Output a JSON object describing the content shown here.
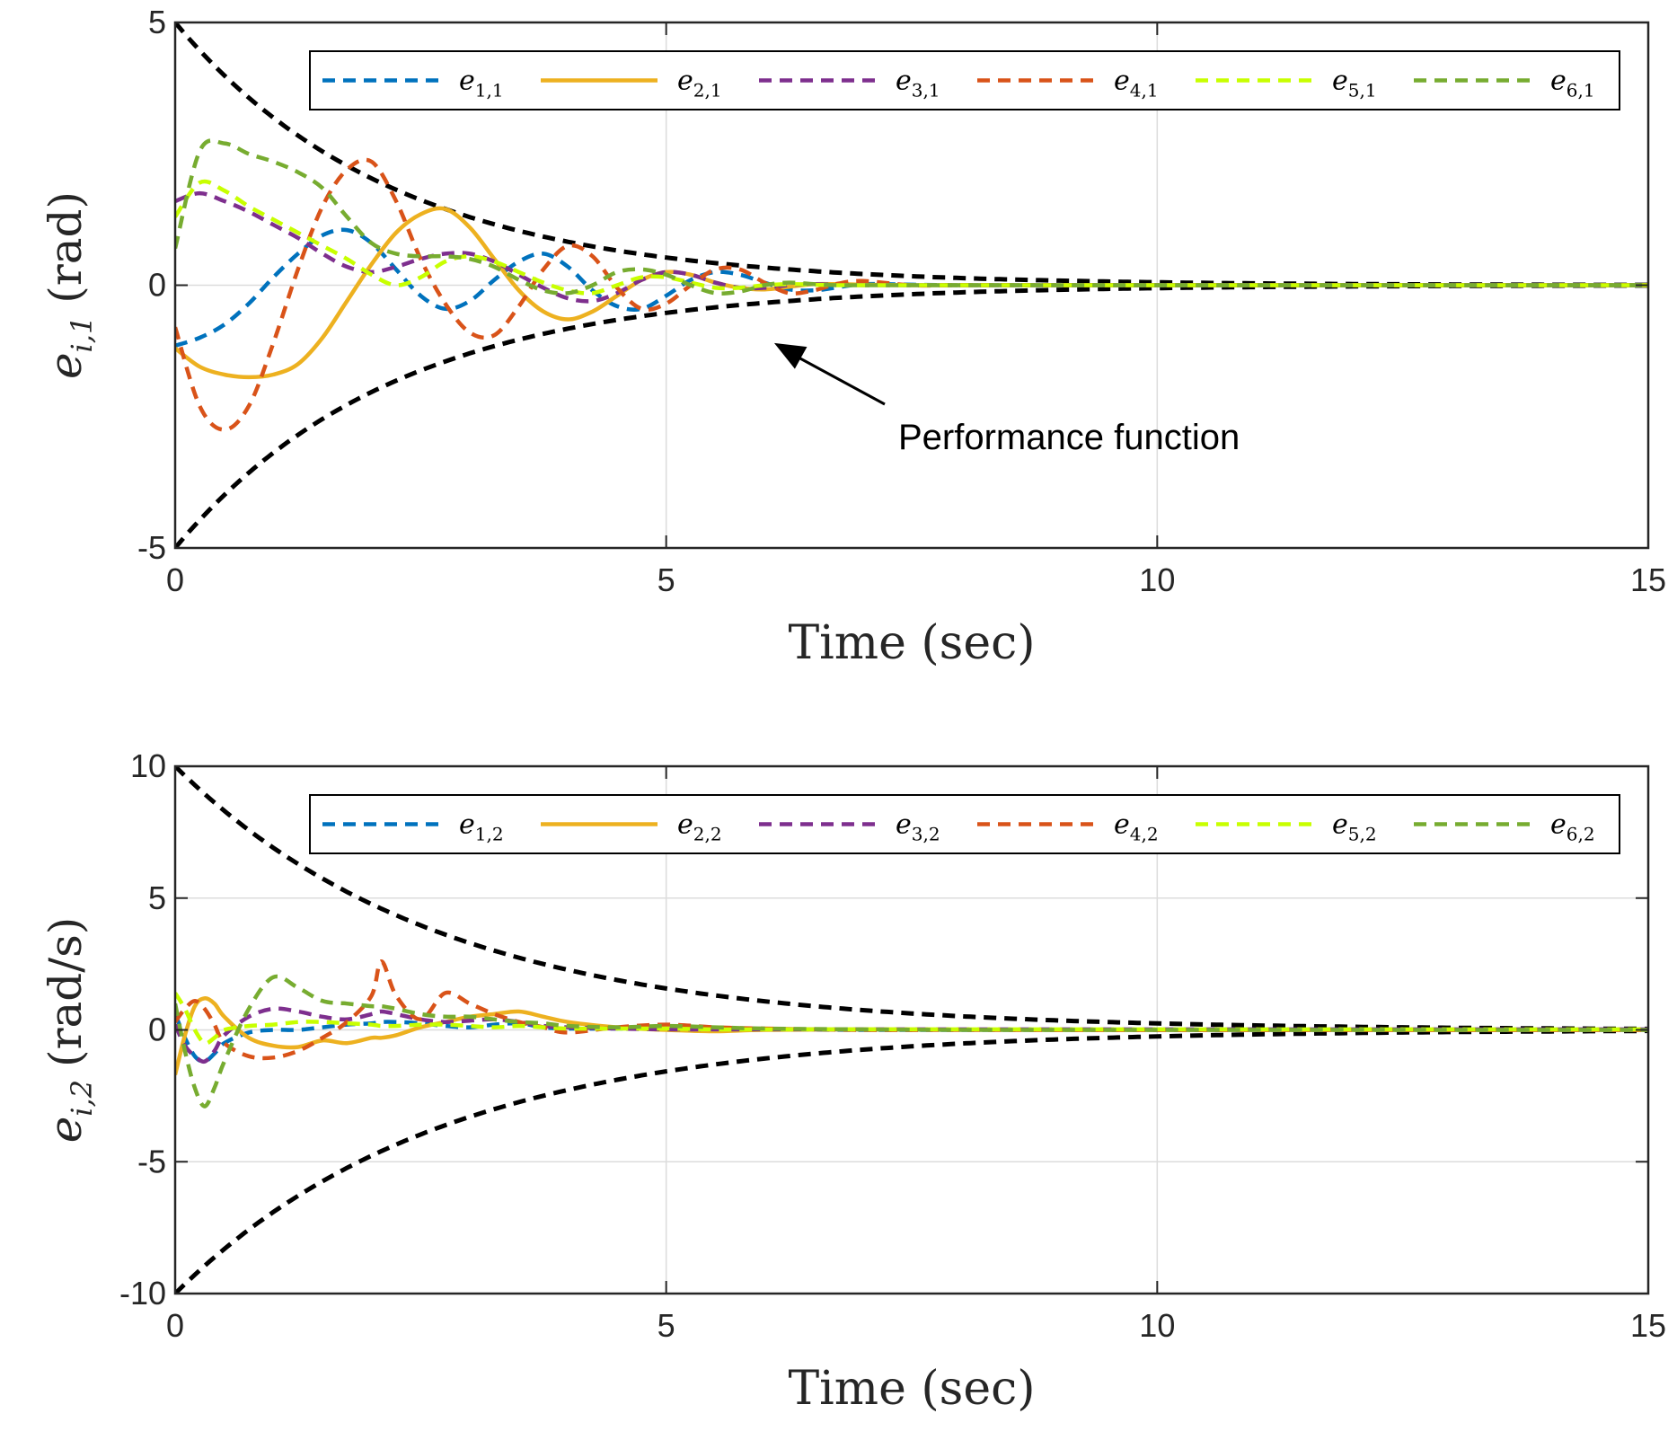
{
  "chart_data": [
    {
      "type": "line",
      "xlabel": "Time (sec)",
      "ylabel": {
        "var": "e",
        "sub": "i,1",
        "unit": "(rad)"
      },
      "xlim": [
        0,
        15
      ],
      "ylim": [
        -5,
        5
      ],
      "xticks": [
        0,
        5,
        10,
        15
      ],
      "yticks": [
        -5,
        0,
        5
      ],
      "x_tick_labels": [
        "0",
        "5",
        "10",
        "15"
      ],
      "y_tick_labels": [
        "-5",
        "0",
        "5"
      ],
      "grid": true,
      "legend_position": "top",
      "annotation": {
        "text": "Performance function",
        "arrow_to": [
          6.1,
          -1.1
        ]
      },
      "performance_function": {
        "name": "Performance function",
        "upper_start": 5,
        "lower_start": -5,
        "decay_rate": 0.45,
        "color": "#000000",
        "style": "dashed"
      },
      "x": [
        0,
        0.25,
        0.5,
        0.75,
        1,
        1.25,
        1.5,
        1.75,
        2,
        2.25,
        2.5,
        2.75,
        3,
        3.25,
        3.5,
        3.75,
        4,
        4.25,
        4.5,
        4.75,
        5,
        5.25,
        5.5,
        5.75,
        6,
        6.25,
        6.5,
        6.75,
        7,
        7.5,
        8,
        9,
        10,
        11,
        12,
        13,
        14,
        15
      ],
      "series": [
        {
          "name": "e",
          "sub": "1,1",
          "color": "#0072BD",
          "style": "dashed",
          "values": [
            -1.15,
            -1.0,
            -0.75,
            -0.35,
            0.15,
            0.6,
            0.95,
            1.05,
            0.8,
            0.3,
            -0.2,
            -0.45,
            -0.3,
            0.1,
            0.45,
            0.6,
            0.35,
            -0.1,
            -0.4,
            -0.45,
            -0.2,
            0.1,
            0.25,
            0.2,
            0.05,
            -0.08,
            -0.1,
            -0.04,
            0.02,
            0.01,
            0,
            0,
            0,
            0,
            0,
            0,
            0,
            0
          ]
        },
        {
          "name": "e",
          "sub": "2,1",
          "color": "#EDB120",
          "style": "solid",
          "values": [
            -1.2,
            -1.55,
            -1.7,
            -1.75,
            -1.7,
            -1.5,
            -1.0,
            -0.3,
            0.4,
            1.0,
            1.35,
            1.45,
            1.1,
            0.5,
            -0.1,
            -0.5,
            -0.65,
            -0.5,
            -0.2,
            0.1,
            0.25,
            0.2,
            0.05,
            -0.05,
            -0.08,
            -0.03,
            0.02,
            0.02,
            0.01,
            0,
            0,
            0,
            0,
            0,
            0,
            0,
            0,
            0
          ]
        },
        {
          "name": "e",
          "sub": "3,1",
          "color": "#7E2F8E",
          "style": "dashed",
          "values": [
            1.6,
            1.75,
            1.6,
            1.4,
            1.15,
            0.9,
            0.6,
            0.35,
            0.25,
            0.35,
            0.5,
            0.6,
            0.6,
            0.45,
            0.2,
            -0.05,
            -0.25,
            -0.3,
            -0.15,
            0.1,
            0.25,
            0.2,
            0.05,
            -0.05,
            -0.05,
            0,
            0.02,
            0.01,
            0,
            0,
            0,
            0,
            0,
            0,
            0,
            0,
            0,
            0
          ]
        },
        {
          "name": "e",
          "sub": "4,1",
          "color": "#D95319",
          "style": "dashed",
          "values": [
            -0.8,
            -2.3,
            -2.75,
            -2.3,
            -1.1,
            0.3,
            1.5,
            2.2,
            2.35,
            1.6,
            0.5,
            -0.35,
            -0.9,
            -0.95,
            -0.4,
            0.3,
            0.75,
            0.55,
            -0.05,
            -0.45,
            -0.35,
            0.0,
            0.3,
            0.3,
            0.05,
            -0.15,
            -0.1,
            0.03,
            0.08,
            0.0,
            0,
            0,
            0,
            0,
            0,
            0,
            0,
            0
          ]
        },
        {
          "name": "e",
          "sub": "5,1",
          "color": "#C8FF00",
          "style": "dashed",
          "values": [
            1.3,
            1.95,
            1.8,
            1.5,
            1.25,
            1.0,
            0.75,
            0.5,
            0.2,
            0.0,
            0.15,
            0.45,
            0.55,
            0.45,
            0.25,
            0.05,
            -0.1,
            -0.15,
            0.0,
            0.15,
            0.15,
            0.05,
            -0.05,
            -0.05,
            0.0,
            0.02,
            0.01,
            0,
            0,
            0,
            0,
            0,
            0,
            0,
            0,
            0,
            0,
            0
          ]
        },
        {
          "name": "e",
          "sub": "6,1",
          "color": "#77AC30",
          "style": "dashed",
          "values": [
            0.7,
            2.55,
            2.7,
            2.5,
            2.35,
            2.15,
            1.85,
            1.3,
            0.8,
            0.6,
            0.55,
            0.55,
            0.5,
            0.35,
            0.1,
            -0.1,
            -0.15,
            0.0,
            0.25,
            0.3,
            0.2,
            0.0,
            -0.15,
            -0.12,
            0.0,
            0.05,
            0.02,
            0,
            0,
            0,
            0,
            0,
            0,
            0,
            0,
            0,
            0,
            0
          ]
        }
      ]
    },
    {
      "type": "line",
      "xlabel": "Time (sec)",
      "ylabel": {
        "var": "e",
        "sub": "i,2",
        "unit": "(rad/s)"
      },
      "xlim": [
        0,
        15
      ],
      "ylim": [
        -10,
        10
      ],
      "xticks": [
        0,
        5,
        10,
        15
      ],
      "yticks": [
        -10,
        -5,
        0,
        5,
        10
      ],
      "x_tick_labels": [
        "0",
        "5",
        "10",
        "15"
      ],
      "y_tick_labels": [
        "-10",
        "-5",
        "0",
        "5",
        "10"
      ],
      "grid": true,
      "legend_position": "top",
      "performance_function": {
        "name": "Performance function",
        "upper_start": 10,
        "lower_start": -10,
        "decay_rate": 0.37,
        "color": "#000000",
        "style": "dashed"
      },
      "x": [
        0,
        0.1,
        0.2,
        0.3,
        0.4,
        0.5,
        0.75,
        1,
        1.25,
        1.5,
        1.75,
        2,
        2.1,
        2.25,
        2.5,
        2.75,
        3,
        3.25,
        3.5,
        3.75,
        4,
        4.5,
        5,
        5.5,
        6,
        7,
        8,
        9,
        10,
        12,
        15
      ],
      "series": [
        {
          "name": "e",
          "sub": "1,2",
          "color": "#0072BD",
          "style": "dashed",
          "values": [
            0.6,
            -0.3,
            -1.0,
            -1.2,
            -0.9,
            -0.5,
            -0.1,
            0.0,
            0.0,
            0.1,
            0.2,
            0.25,
            0.3,
            0.3,
            0.25,
            0.15,
            0.1,
            0.2,
            0.25,
            0.1,
            0.05,
            0.05,
            0.05,
            0.02,
            0.02,
            0,
            0,
            0,
            0,
            0,
            0
          ]
        },
        {
          "name": "e",
          "sub": "2,2",
          "color": "#EDB120",
          "style": "solid",
          "values": [
            -1.7,
            -0.2,
            0.9,
            1.2,
            1.0,
            0.5,
            -0.3,
            -0.6,
            -0.65,
            -0.4,
            -0.5,
            -0.3,
            -0.3,
            -0.2,
            0.1,
            0.3,
            0.5,
            0.6,
            0.7,
            0.5,
            0.3,
            0.1,
            0.0,
            -0.05,
            0.0,
            0.02,
            0.01,
            0,
            0,
            0,
            0
          ]
        },
        {
          "name": "e",
          "sub": "3,2",
          "color": "#7E2F8E",
          "style": "dashed",
          "values": [
            0.2,
            -0.6,
            -1.0,
            -1.2,
            -0.8,
            -0.2,
            0.5,
            0.8,
            0.7,
            0.5,
            0.4,
            0.6,
            0.7,
            0.6,
            0.4,
            0.3,
            0.35,
            0.4,
            0.3,
            0.15,
            0.1,
            0.05,
            0.02,
            0.02,
            0.02,
            0.02,
            0.02,
            0.02,
            0.02,
            0.02,
            0.02
          ]
        },
        {
          "name": "e",
          "sub": "4,2",
          "color": "#D95319",
          "style": "dashed",
          "values": [
            0.3,
            0.8,
            1.1,
            0.8,
            0.2,
            -0.5,
            -1.0,
            -1.05,
            -0.8,
            -0.3,
            0.3,
            1.3,
            2.6,
            1.3,
            0.4,
            1.4,
            1.0,
            0.6,
            0.3,
            0.1,
            -0.1,
            0.1,
            0.2,
            0.1,
            0.05,
            0.0,
            0,
            0,
            0,
            0,
            0
          ]
        },
        {
          "name": "e",
          "sub": "5,2",
          "color": "#C8FF00",
          "style": "dashed",
          "values": [
            1.4,
            0.8,
            0.0,
            -0.5,
            -0.3,
            0.0,
            0.15,
            0.2,
            0.3,
            0.3,
            0.25,
            0.2,
            0.15,
            0.15,
            0.2,
            0.2,
            0.15,
            0.1,
            0.15,
            0.1,
            0.05,
            0.05,
            0.05,
            0.02,
            0.02,
            0.02,
            0.02,
            0.02,
            0.02,
            0.02,
            0.02
          ]
        },
        {
          "name": "e",
          "sub": "6,2",
          "color": "#77AC30",
          "style": "dashed",
          "values": [
            1.0,
            -0.8,
            -2.2,
            -2.9,
            -2.2,
            -1.2,
            0.8,
            2.0,
            1.6,
            1.1,
            1.0,
            0.9,
            0.9,
            0.8,
            0.6,
            0.5,
            0.5,
            0.4,
            0.3,
            0.25,
            0.15,
            0.1,
            0.15,
            0.1,
            0.05,
            0.02,
            0,
            0,
            0,
            0,
            0
          ]
        }
      ]
    }
  ]
}
